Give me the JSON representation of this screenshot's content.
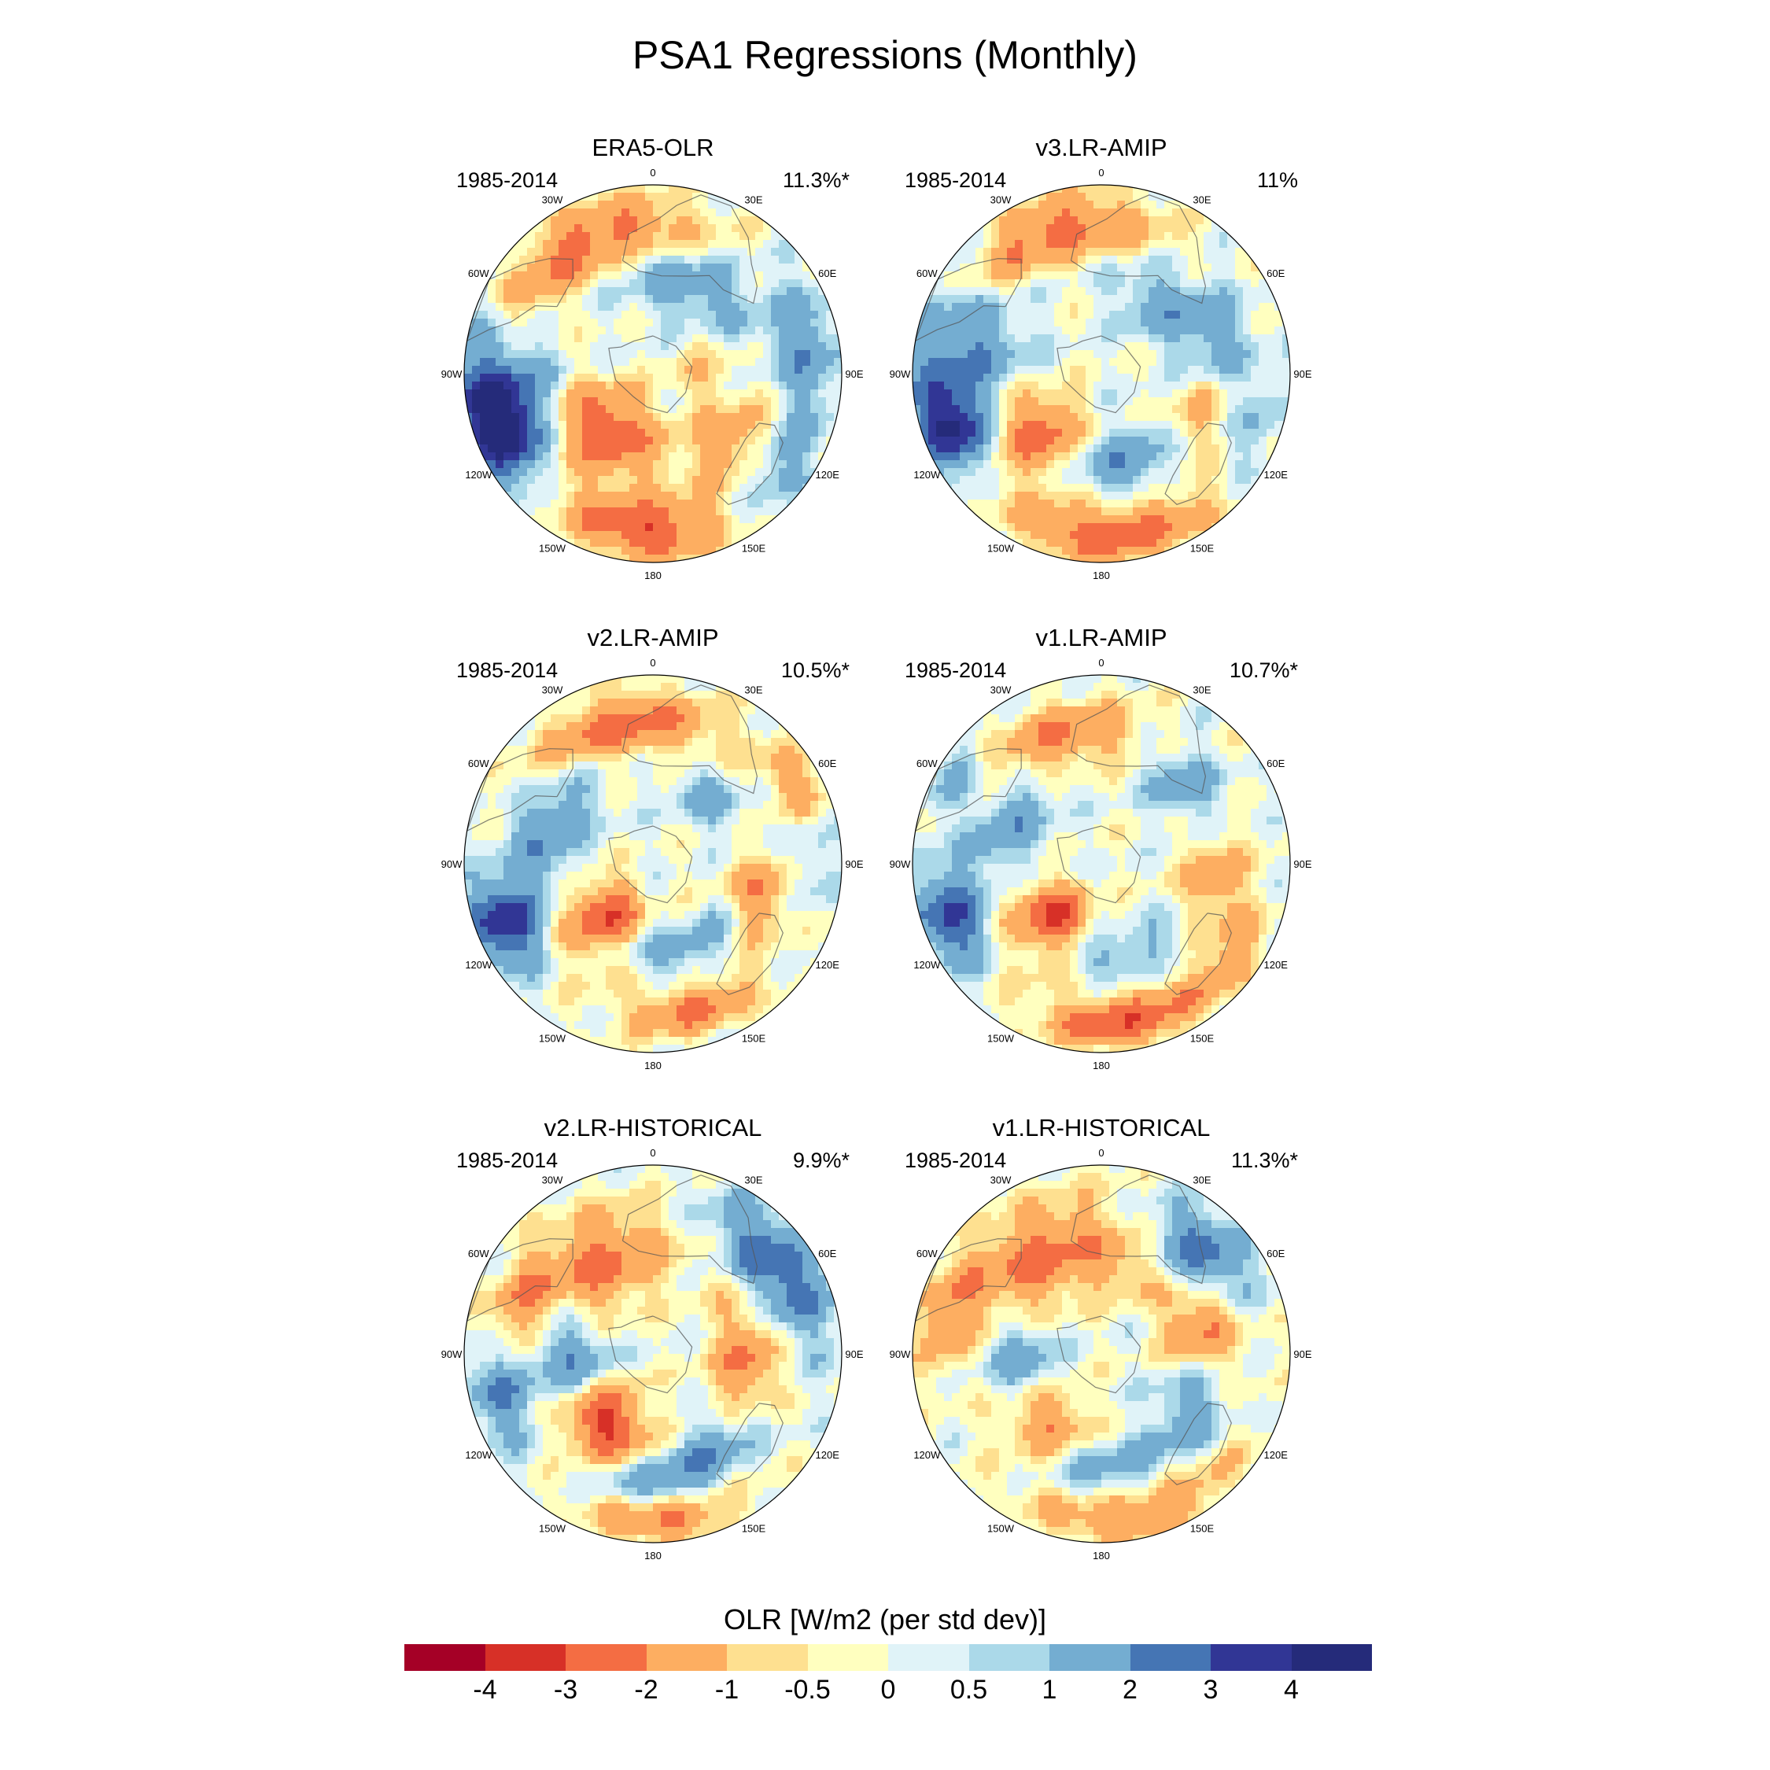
{
  "figure": {
    "title": "PSA1 Regressions (Monthly)"
  },
  "longitude_labels": [
    "0",
    "30E",
    "60E",
    "90E",
    "120E",
    "150E",
    "180",
    "150W",
    "120W",
    "90W",
    "60W",
    "30W"
  ],
  "panels": [
    {
      "title": "ERA5-OLR",
      "period": "1985-2014",
      "variance": "11.3%*",
      "anomalies": [
        {
          "sign": "negative",
          "strength": 2.6,
          "lon": 335,
          "colat": 0.78,
          "ext_lon": 45,
          "ext_r": 0.16
        },
        {
          "sign": "positive",
          "strength": 2.2,
          "lon": 265,
          "colat": 0.8,
          "ext_lon": 25,
          "ext_r": 0.35
        },
        {
          "sign": "positive",
          "strength": 4.2,
          "lon": 250,
          "colat": 0.85,
          "ext_lon": 18,
          "ext_r": 0.18
        },
        {
          "sign": "negative",
          "strength": 2.8,
          "lon": 220,
          "colat": 0.38,
          "ext_lon": 45,
          "ext_r": 0.25
        },
        {
          "sign": "negative",
          "strength": 3.0,
          "lon": 183,
          "colat": 0.83,
          "ext_lon": 28,
          "ext_r": 0.15
        },
        {
          "sign": "positive",
          "strength": 1.6,
          "lon": 25,
          "colat": 0.5,
          "ext_lon": 40,
          "ext_r": 0.22
        },
        {
          "sign": "positive",
          "strength": 1.8,
          "lon": 80,
          "colat": 0.82,
          "ext_lon": 25,
          "ext_r": 0.18
        },
        {
          "sign": "negative",
          "strength": 1.6,
          "lon": 130,
          "colat": 0.55,
          "ext_lon": 25,
          "ext_r": 0.15
        },
        {
          "sign": "positive",
          "strength": 1.4,
          "lon": 125,
          "colat": 0.85,
          "ext_lon": 18,
          "ext_r": 0.14
        },
        {
          "sign": "negative",
          "strength": 0.8,
          "lon": 90,
          "colat": 0.25,
          "ext_lon": 60,
          "ext_r": 0.2
        }
      ]
    },
    {
      "title": "v3.LR-AMIP",
      "period": "1985-2014",
      "variance": "11%",
      "anomalies": [
        {
          "sign": "negative",
          "strength": 2.5,
          "lon": 340,
          "colat": 0.8,
          "ext_lon": 40,
          "ext_r": 0.16
        },
        {
          "sign": "positive",
          "strength": 2.4,
          "lon": 280,
          "colat": 0.75,
          "ext_lon": 30,
          "ext_r": 0.3
        },
        {
          "sign": "positive",
          "strength": 3.6,
          "lon": 250,
          "colat": 0.85,
          "ext_lon": 15,
          "ext_r": 0.18
        },
        {
          "sign": "negative",
          "strength": 2.7,
          "lon": 225,
          "colat": 0.45,
          "ext_lon": 30,
          "ext_r": 0.22
        },
        {
          "sign": "positive",
          "strength": 1.8,
          "lon": 165,
          "colat": 0.5,
          "ext_lon": 40,
          "ext_r": 0.18
        },
        {
          "sign": "negative",
          "strength": 2.8,
          "lon": 175,
          "colat": 0.85,
          "ext_lon": 35,
          "ext_r": 0.15
        },
        {
          "sign": "positive",
          "strength": 1.5,
          "lon": 70,
          "colat": 0.62,
          "ext_lon": 30,
          "ext_r": 0.2
        },
        {
          "sign": "negative",
          "strength": 1.6,
          "lon": 115,
          "colat": 0.55,
          "ext_lon": 25,
          "ext_r": 0.15
        },
        {
          "sign": "positive",
          "strength": 1.2,
          "lon": 35,
          "colat": 0.45,
          "ext_lon": 30,
          "ext_r": 0.18
        },
        {
          "sign": "positive",
          "strength": 1.0,
          "lon": 110,
          "colat": 0.88,
          "ext_lon": 20,
          "ext_r": 0.12
        }
      ]
    },
    {
      "title": "v2.LR-AMIP",
      "period": "1985-2014",
      "variance": "10.5%*",
      "anomalies": [
        {
          "sign": "negative",
          "strength": 2.6,
          "lon": 345,
          "colat": 0.75,
          "ext_lon": 40,
          "ext_r": 0.17
        },
        {
          "sign": "positive",
          "strength": 2.0,
          "lon": 290,
          "colat": 0.6,
          "ext_lon": 40,
          "ext_r": 0.2
        },
        {
          "sign": "positive",
          "strength": 3.8,
          "lon": 248,
          "colat": 0.85,
          "ext_lon": 15,
          "ext_r": 0.18
        },
        {
          "sign": "negative",
          "strength": 3.4,
          "lon": 222,
          "colat": 0.4,
          "ext_lon": 30,
          "ext_r": 0.22
        },
        {
          "sign": "positive",
          "strength": 1.6,
          "lon": 170,
          "colat": 0.48,
          "ext_lon": 60,
          "ext_r": 0.12
        },
        {
          "sign": "negative",
          "strength": 2.2,
          "lon": 165,
          "colat": 0.8,
          "ext_lon": 25,
          "ext_r": 0.12
        },
        {
          "sign": "negative",
          "strength": 2.2,
          "lon": 105,
          "colat": 0.58,
          "ext_lon": 22,
          "ext_r": 0.18
        },
        {
          "sign": "positive",
          "strength": 1.4,
          "lon": 40,
          "colat": 0.45,
          "ext_lon": 25,
          "ext_r": 0.15
        },
        {
          "sign": "negative",
          "strength": 1.6,
          "lon": 60,
          "colat": 0.85,
          "ext_lon": 15,
          "ext_r": 0.12
        },
        {
          "sign": "positive",
          "strength": 1.0,
          "lon": 90,
          "colat": 0.8,
          "ext_lon": 20,
          "ext_r": 0.14
        }
      ]
    },
    {
      "title": "v1.LR-AMIP",
      "period": "1985-2014",
      "variance": "10.7%*",
      "anomalies": [
        {
          "sign": "negative",
          "strength": 2.3,
          "lon": 340,
          "colat": 0.7,
          "ext_lon": 35,
          "ext_r": 0.16
        },
        {
          "sign": "positive",
          "strength": 1.8,
          "lon": 295,
          "colat": 0.55,
          "ext_lon": 35,
          "ext_r": 0.2
        },
        {
          "sign": "positive",
          "strength": 3.2,
          "lon": 250,
          "colat": 0.85,
          "ext_lon": 17,
          "ext_r": 0.17
        },
        {
          "sign": "negative",
          "strength": 3.2,
          "lon": 222,
          "colat": 0.4,
          "ext_lon": 30,
          "ext_r": 0.22
        },
        {
          "sign": "positive",
          "strength": 1.5,
          "lon": 175,
          "colat": 0.5,
          "ext_lon": 50,
          "ext_r": 0.12
        },
        {
          "sign": "negative",
          "strength": 2.7,
          "lon": 170,
          "colat": 0.85,
          "ext_lon": 30,
          "ext_r": 0.14
        },
        {
          "sign": "negative",
          "strength": 1.8,
          "lon": 100,
          "colat": 0.6,
          "ext_lon": 22,
          "ext_r": 0.18
        },
        {
          "sign": "positive",
          "strength": 1.6,
          "lon": 45,
          "colat": 0.6,
          "ext_lon": 20,
          "ext_r": 0.18
        },
        {
          "sign": "negative",
          "strength": 1.4,
          "lon": 125,
          "colat": 0.85,
          "ext_lon": 15,
          "ext_r": 0.12
        },
        {
          "sign": "positive",
          "strength": 1.2,
          "lon": 300,
          "colat": 0.9,
          "ext_lon": 15,
          "ext_r": 0.1
        }
      ]
    },
    {
      "title": "v2.LR-HISTORICAL",
      "period": "1985-2014",
      "variance": "9.9%*",
      "anomalies": [
        {
          "sign": "negative",
          "strength": 2.3,
          "lon": 330,
          "colat": 0.55,
          "ext_lon": 40,
          "ext_r": 0.25
        },
        {
          "sign": "negative",
          "strength": 1.8,
          "lon": 290,
          "colat": 0.75,
          "ext_lon": 20,
          "ext_r": 0.15
        },
        {
          "sign": "positive",
          "strength": 2.0,
          "lon": 265,
          "colat": 0.45,
          "ext_lon": 35,
          "ext_r": 0.22
        },
        {
          "sign": "positive",
          "strength": 2.0,
          "lon": 255,
          "colat": 0.85,
          "ext_lon": 18,
          "ext_r": 0.16
        },
        {
          "sign": "negative",
          "strength": 3.5,
          "lon": 215,
          "colat": 0.45,
          "ext_lon": 30,
          "ext_r": 0.22
        },
        {
          "sign": "positive",
          "strength": 2.0,
          "lon": 175,
          "colat": 0.68,
          "ext_lon": 35,
          "ext_r": 0.15
        },
        {
          "sign": "negative",
          "strength": 2.5,
          "lon": 175,
          "colat": 0.88,
          "ext_lon": 25,
          "ext_r": 0.12
        },
        {
          "sign": "positive",
          "strength": 2.8,
          "lon": 55,
          "colat": 0.8,
          "ext_lon": 30,
          "ext_r": 0.2
        },
        {
          "sign": "negative",
          "strength": 2.2,
          "lon": 95,
          "colat": 0.5,
          "ext_lon": 40,
          "ext_r": 0.18
        },
        {
          "sign": "positive",
          "strength": 1.4,
          "lon": 140,
          "colat": 0.55,
          "ext_lon": 25,
          "ext_r": 0.15
        }
      ]
    },
    {
      "title": "v1.LR-HISTORICAL",
      "period": "1985-2014",
      "variance": "11.3%*",
      "anomalies": [
        {
          "sign": "negative",
          "strength": 2.4,
          "lon": 325,
          "colat": 0.6,
          "ext_lon": 45,
          "ext_r": 0.25
        },
        {
          "sign": "negative",
          "strength": 1.6,
          "lon": 285,
          "colat": 0.85,
          "ext_lon": 20,
          "ext_r": 0.14
        },
        {
          "sign": "positive",
          "strength": 2.0,
          "lon": 265,
          "colat": 0.45,
          "ext_lon": 35,
          "ext_r": 0.2
        },
        {
          "sign": "negative",
          "strength": 2.4,
          "lon": 220,
          "colat": 0.48,
          "ext_lon": 30,
          "ext_r": 0.2
        },
        {
          "sign": "positive",
          "strength": 1.6,
          "lon": 180,
          "colat": 0.6,
          "ext_lon": 35,
          "ext_r": 0.14
        },
        {
          "sign": "negative",
          "strength": 2.2,
          "lon": 165,
          "colat": 0.88,
          "ext_lon": 35,
          "ext_r": 0.12
        },
        {
          "sign": "positive",
          "strength": 2.6,
          "lon": 45,
          "colat": 0.75,
          "ext_lon": 22,
          "ext_r": 0.2
        },
        {
          "sign": "negative",
          "strength": 2.2,
          "lon": 75,
          "colat": 0.55,
          "ext_lon": 25,
          "ext_r": 0.2
        },
        {
          "sign": "positive",
          "strength": 1.6,
          "lon": 120,
          "colat": 0.55,
          "ext_lon": 25,
          "ext_r": 0.18
        },
        {
          "sign": "negative",
          "strength": 0.9,
          "lon": 20,
          "colat": 0.45,
          "ext_lon": 30,
          "ext_r": 0.15
        }
      ]
    }
  ],
  "colorbar": {
    "label": "OLR [W/m2 (per std dev)]",
    "levels": [
      -4,
      -3,
      -2,
      -1,
      -0.5,
      0,
      0.5,
      1,
      2,
      3,
      4
    ],
    "tick_labels": [
      "-4",
      "-3",
      "-2",
      "-1",
      "-0.5",
      "0",
      "0.5",
      "1",
      "2",
      "3",
      "4"
    ],
    "colors": [
      "#a50026",
      "#d73027",
      "#f46d43",
      "#fdae61",
      "#fee090",
      "#ffffbf",
      "#e0f3f8",
      "#abd9e9",
      "#74add1",
      "#4575b4",
      "#313695",
      "#252b7a"
    ]
  }
}
